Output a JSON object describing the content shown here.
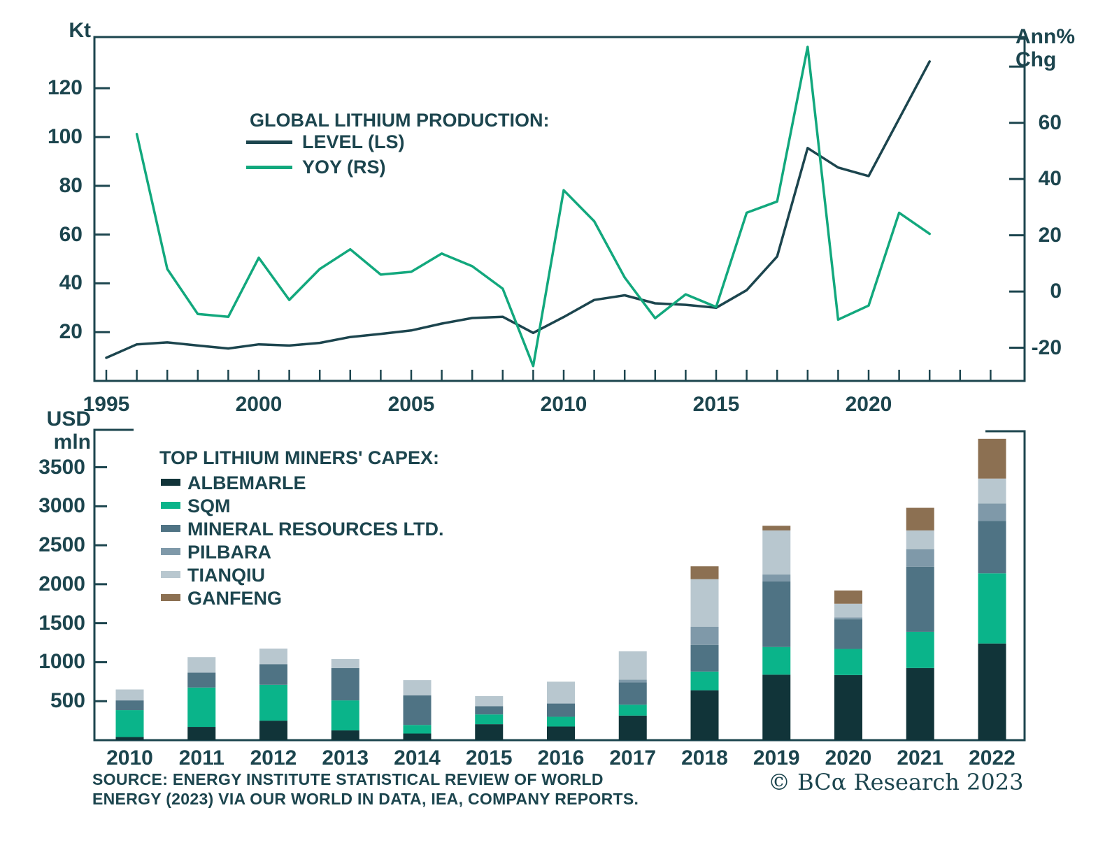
{
  "colors": {
    "ink": "#1C454E",
    "level_line": "#1C454E",
    "yoy_line": "#12A87D",
    "background": "#FFFFFF"
  },
  "ui": {
    "kt_label": "Kt",
    "ann_label_line1": "Ann%",
    "ann_label_line2": "Chg",
    "usd_label_line1": "USD",
    "usd_label_line2": "mln"
  },
  "footer": {
    "source_line1": "SOURCE: ENERGY INSTITUTE STATISTICAL REVIEW OF WORLD",
    "source_line2": "ENERGY (2023) VIA OUR WORLD IN DATA, IEA, COMPANY REPORTS.",
    "copyright": "© BCα Research 2023"
  },
  "chart_data": [
    {
      "type": "line",
      "title": "GLOBAL LITHIUM PRODUCTION:",
      "ylabel_left": "Kt",
      "ylabel_right": "Ann% Chg",
      "legend_position": "top-center-left",
      "grid": false,
      "left_ylim": [
        0,
        141
      ],
      "right_ylim": [
        -31.8,
        90.5
      ],
      "left_ticks": [
        120,
        100,
        80,
        60,
        40,
        20
      ],
      "right_ticks": [
        80,
        60,
        40,
        20,
        0,
        -20
      ],
      "right_tick_labels": [
        "",
        "60",
        "40",
        "20",
        "0",
        "-20"
      ],
      "x_ticks_labeled": [
        1995,
        2000,
        2005,
        2010,
        2015,
        2020
      ],
      "x_tick_start": 1995,
      "x_tick_end": 2024,
      "series": [
        {
          "name": "LEVEL (LS)",
          "axis": "left",
          "color": "#1C454E",
          "x_start": 1995,
          "values": [
            9.5,
            15,
            15.8,
            14.5,
            13.3,
            15,
            14.5,
            15.6,
            18,
            19.3,
            20.7,
            23.5,
            25.8,
            26.3,
            19.7,
            26.2,
            33.2,
            35.1,
            31.8,
            31.2,
            30,
            37.2,
            51,
            95.5,
            87.5,
            84,
            107.5,
            131
          ]
        },
        {
          "name": "YOY (RS)",
          "axis": "right",
          "color": "#12A87D",
          "x_start": 1996,
          "values": [
            56,
            8,
            -8,
            -9,
            12,
            -3,
            8,
            15,
            6,
            7,
            13.5,
            9,
            1,
            -26.5,
            36,
            25,
            5,
            -9.5,
            -1,
            -5.5,
            28,
            32,
            87,
            -10,
            -5,
            28,
            20.5
          ]
        }
      ]
    },
    {
      "type": "bar",
      "stacked": true,
      "title": "TOP LITHIUM MINERS' CAPEX:",
      "ylabel": "USD mln",
      "grid": false,
      "ylim": [
        0,
        3980
      ],
      "y_ticks": [
        3500,
        3000,
        2500,
        2000,
        1500,
        1000,
        500
      ],
      "categories": [
        2010,
        2011,
        2012,
        2013,
        2014,
        2015,
        2016,
        2017,
        2018,
        2019,
        2020,
        2021,
        2022
      ],
      "series": [
        {
          "name": "ALBEMARLE",
          "color": "#113439",
          "values": [
            40,
            170,
            250,
            125,
            85,
            205,
            175,
            315,
            640,
            840,
            835,
            925,
            1240
          ]
        },
        {
          "name": "SQM",
          "color": "#0AB48A",
          "values": [
            345,
            505,
            460,
            385,
            110,
            125,
            125,
            140,
            240,
            355,
            335,
            465,
            900
          ]
        },
        {
          "name": "MINERAL RESOURCES LTD.",
          "color": "#4F7384",
          "values": [
            125,
            190,
            265,
            415,
            380,
            105,
            170,
            285,
            340,
            840,
            380,
            835,
            670
          ]
        },
        {
          "name": "PILBARA",
          "color": "#7F99A9",
          "values": [
            0,
            0,
            0,
            0,
            0,
            0,
            0,
            35,
            235,
            90,
            25,
            225,
            225
          ]
        },
        {
          "name": "TIANQIU",
          "color": "#B8C7CF",
          "values": [
            140,
            200,
            200,
            115,
            195,
            130,
            280,
            365,
            610,
            565,
            175,
            240,
            320
          ]
        },
        {
          "name": "GANFENG",
          "color": "#8C7052",
          "values": [
            0,
            0,
            0,
            0,
            0,
            0,
            0,
            0,
            165,
            60,
            170,
            290,
            510
          ]
        }
      ]
    }
  ]
}
